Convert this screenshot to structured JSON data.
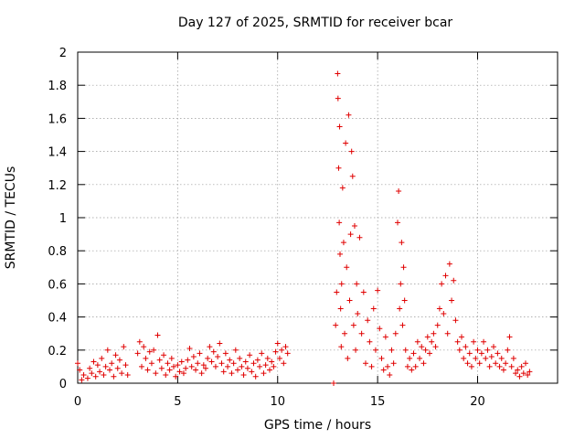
{
  "chart_data": {
    "type": "scatter",
    "title": "Day 127 of 2025, SRMTID for receiver bcar",
    "xlabel": "GPS time / hours",
    "ylabel": "SRMTID / TECUs",
    "xlim": [
      0,
      24
    ],
    "ylim": [
      0,
      2
    ],
    "xticks": [
      0,
      5,
      10,
      15,
      20
    ],
    "xtick_labels": [
      "0",
      "5",
      "10",
      "15",
      "20"
    ],
    "yticks": [
      0,
      0.2,
      0.4,
      0.6,
      0.8,
      1,
      1.2,
      1.4,
      1.6,
      1.8,
      2
    ],
    "ytick_labels": [
      "0",
      "0.2",
      "0.4",
      "0.6",
      "0.8",
      "1",
      "1.2",
      "1.4",
      "1.6",
      "1.8",
      "2"
    ],
    "grid": true,
    "marker": "+",
    "series": [
      {
        "name": "SRMTID",
        "color": "#e00000",
        "points": [
          [
            0.0,
            0.12
          ],
          [
            0.1,
            0.08
          ],
          [
            0.2,
            0.02
          ],
          [
            0.3,
            0.05
          ],
          [
            0.5,
            0.03
          ],
          [
            0.6,
            0.09
          ],
          [
            0.7,
            0.06
          ],
          [
            0.8,
            0.13
          ],
          [
            0.9,
            0.04
          ],
          [
            1.0,
            0.11
          ],
          [
            1.1,
            0.07
          ],
          [
            1.2,
            0.15
          ],
          [
            1.3,
            0.05
          ],
          [
            1.4,
            0.1
          ],
          [
            1.5,
            0.2
          ],
          [
            1.6,
            0.08
          ],
          [
            1.7,
            0.12
          ],
          [
            1.8,
            0.04
          ],
          [
            1.9,
            0.17
          ],
          [
            2.0,
            0.09
          ],
          [
            2.1,
            0.14
          ],
          [
            2.2,
            0.06
          ],
          [
            2.3,
            0.22
          ],
          [
            2.4,
            0.11
          ],
          [
            2.5,
            0.05
          ],
          [
            3.0,
            0.18
          ],
          [
            3.1,
            0.25
          ],
          [
            3.2,
            0.1
          ],
          [
            3.3,
            0.22
          ],
          [
            3.4,
            0.15
          ],
          [
            3.5,
            0.08
          ],
          [
            3.6,
            0.19
          ],
          [
            3.7,
            0.12
          ],
          [
            3.8,
            0.2
          ],
          [
            3.9,
            0.06
          ],
          [
            4.0,
            0.29
          ],
          [
            4.1,
            0.14
          ],
          [
            4.2,
            0.09
          ],
          [
            4.3,
            0.17
          ],
          [
            4.4,
            0.05
          ],
          [
            4.5,
            0.12
          ],
          [
            4.6,
            0.08
          ],
          [
            4.7,
            0.15
          ],
          [
            4.8,
            0.1
          ],
          [
            4.9,
            0.04
          ],
          [
            5.0,
            0.11
          ],
          [
            5.1,
            0.07
          ],
          [
            5.2,
            0.13
          ],
          [
            5.3,
            0.06
          ],
          [
            5.4,
            0.09
          ],
          [
            5.5,
            0.14
          ],
          [
            5.6,
            0.21
          ],
          [
            5.7,
            0.1
          ],
          [
            5.8,
            0.16
          ],
          [
            5.9,
            0.08
          ],
          [
            6.0,
            0.12
          ],
          [
            6.1,
            0.18
          ],
          [
            6.2,
            0.06
          ],
          [
            6.3,
            0.11
          ],
          [
            6.4,
            0.09
          ],
          [
            6.5,
            0.15
          ],
          [
            6.6,
            0.22
          ],
          [
            6.7,
            0.13
          ],
          [
            6.8,
            0.19
          ],
          [
            6.9,
            0.1
          ],
          [
            7.0,
            0.16
          ],
          [
            7.1,
            0.24
          ],
          [
            7.2,
            0.12
          ],
          [
            7.3,
            0.07
          ],
          [
            7.4,
            0.18
          ],
          [
            7.5,
            0.1
          ],
          [
            7.6,
            0.14
          ],
          [
            7.7,
            0.06
          ],
          [
            7.8,
            0.12
          ],
          [
            7.9,
            0.2
          ],
          [
            8.0,
            0.08
          ],
          [
            8.1,
            0.15
          ],
          [
            8.2,
            0.1
          ],
          [
            8.3,
            0.05
          ],
          [
            8.4,
            0.13
          ],
          [
            8.5,
            0.09
          ],
          [
            8.6,
            0.17
          ],
          [
            8.7,
            0.07
          ],
          [
            8.8,
            0.12
          ],
          [
            8.9,
            0.04
          ],
          [
            9.0,
            0.14
          ],
          [
            9.1,
            0.1
          ],
          [
            9.2,
            0.18
          ],
          [
            9.3,
            0.06
          ],
          [
            9.4,
            0.11
          ],
          [
            9.5,
            0.15
          ],
          [
            9.6,
            0.08
          ],
          [
            9.7,
            0.13
          ],
          [
            9.8,
            0.1
          ],
          [
            9.9,
            0.19
          ],
          [
            10.0,
            0.24
          ],
          [
            10.1,
            0.15
          ],
          [
            10.2,
            0.2
          ],
          [
            10.3,
            0.12
          ],
          [
            10.4,
            0.22
          ],
          [
            10.5,
            0.18
          ],
          [
            12.8,
            0.0
          ],
          [
            12.9,
            0.35
          ],
          [
            12.95,
            0.55
          ],
          [
            13.0,
            1.87
          ],
          [
            13.02,
            1.72
          ],
          [
            13.05,
            1.3
          ],
          [
            13.08,
            0.97
          ],
          [
            13.1,
            1.55
          ],
          [
            13.12,
            0.78
          ],
          [
            13.15,
            0.45
          ],
          [
            13.18,
            0.22
          ],
          [
            13.2,
            0.6
          ],
          [
            13.25,
            1.18
          ],
          [
            13.3,
            0.85
          ],
          [
            13.35,
            0.3
          ],
          [
            13.4,
            1.45
          ],
          [
            13.45,
            0.7
          ],
          [
            13.5,
            0.15
          ],
          [
            13.55,
            1.62
          ],
          [
            13.6,
            0.5
          ],
          [
            13.65,
            0.9
          ],
          [
            13.7,
            1.4
          ],
          [
            13.75,
            1.25
          ],
          [
            13.8,
            0.35
          ],
          [
            13.85,
            0.95
          ],
          [
            13.9,
            0.2
          ],
          [
            13.95,
            0.6
          ],
          [
            14.0,
            0.42
          ],
          [
            14.1,
            0.88
          ],
          [
            14.2,
            0.3
          ],
          [
            14.3,
            0.55
          ],
          [
            14.4,
            0.12
          ],
          [
            14.5,
            0.38
          ],
          [
            14.6,
            0.25
          ],
          [
            14.7,
            0.1
          ],
          [
            14.8,
            0.45
          ],
          [
            14.9,
            0.2
          ],
          [
            15.0,
            0.56
          ],
          [
            15.1,
            0.33
          ],
          [
            15.2,
            0.15
          ],
          [
            15.3,
            0.08
          ],
          [
            15.4,
            0.28
          ],
          [
            15.5,
            0.1
          ],
          [
            15.6,
            0.05
          ],
          [
            15.7,
            0.2
          ],
          [
            15.8,
            0.12
          ],
          [
            15.9,
            0.3
          ],
          [
            16.0,
            0.97
          ],
          [
            16.05,
            1.16
          ],
          [
            16.1,
            0.45
          ],
          [
            16.15,
            0.6
          ],
          [
            16.2,
            0.85
          ],
          [
            16.25,
            0.35
          ],
          [
            16.3,
            0.7
          ],
          [
            16.35,
            0.5
          ],
          [
            16.4,
            0.2
          ],
          [
            16.5,
            0.1
          ],
          [
            16.6,
            0.15
          ],
          [
            16.7,
            0.08
          ],
          [
            16.8,
            0.18
          ],
          [
            16.9,
            0.1
          ],
          [
            17.0,
            0.25
          ],
          [
            17.1,
            0.15
          ],
          [
            17.2,
            0.22
          ],
          [
            17.3,
            0.12
          ],
          [
            17.4,
            0.2
          ],
          [
            17.5,
            0.28
          ],
          [
            17.6,
            0.18
          ],
          [
            17.7,
            0.25
          ],
          [
            17.8,
            0.3
          ],
          [
            17.9,
            0.22
          ],
          [
            18.0,
            0.35
          ],
          [
            18.1,
            0.45
          ],
          [
            18.2,
            0.6
          ],
          [
            18.3,
            0.42
          ],
          [
            18.4,
            0.65
          ],
          [
            18.5,
            0.3
          ],
          [
            18.6,
            0.72
          ],
          [
            18.7,
            0.5
          ],
          [
            18.8,
            0.62
          ],
          [
            18.9,
            0.38
          ],
          [
            19.0,
            0.25
          ],
          [
            19.1,
            0.2
          ],
          [
            19.2,
            0.28
          ],
          [
            19.3,
            0.15
          ],
          [
            19.4,
            0.22
          ],
          [
            19.5,
            0.12
          ],
          [
            19.6,
            0.18
          ],
          [
            19.7,
            0.1
          ],
          [
            19.8,
            0.25
          ],
          [
            19.9,
            0.15
          ],
          [
            20.0,
            0.2
          ],
          [
            20.1,
            0.12
          ],
          [
            20.2,
            0.18
          ],
          [
            20.3,
            0.25
          ],
          [
            20.4,
            0.15
          ],
          [
            20.5,
            0.2
          ],
          [
            20.6,
            0.1
          ],
          [
            20.7,
            0.16
          ],
          [
            20.8,
            0.22
          ],
          [
            20.9,
            0.12
          ],
          [
            21.0,
            0.18
          ],
          [
            21.1,
            0.1
          ],
          [
            21.2,
            0.15
          ],
          [
            21.3,
            0.08
          ],
          [
            21.4,
            0.12
          ],
          [
            21.5,
            0.2
          ],
          [
            21.6,
            0.28
          ],
          [
            21.7,
            0.1
          ],
          [
            21.8,
            0.15
          ],
          [
            21.9,
            0.06
          ],
          [
            22.0,
            0.08
          ],
          [
            22.1,
            0.04
          ],
          [
            22.2,
            0.1
          ],
          [
            22.3,
            0.06
          ],
          [
            22.4,
            0.12
          ],
          [
            22.5,
            0.05
          ],
          [
            22.6,
            0.07
          ]
        ]
      }
    ]
  }
}
